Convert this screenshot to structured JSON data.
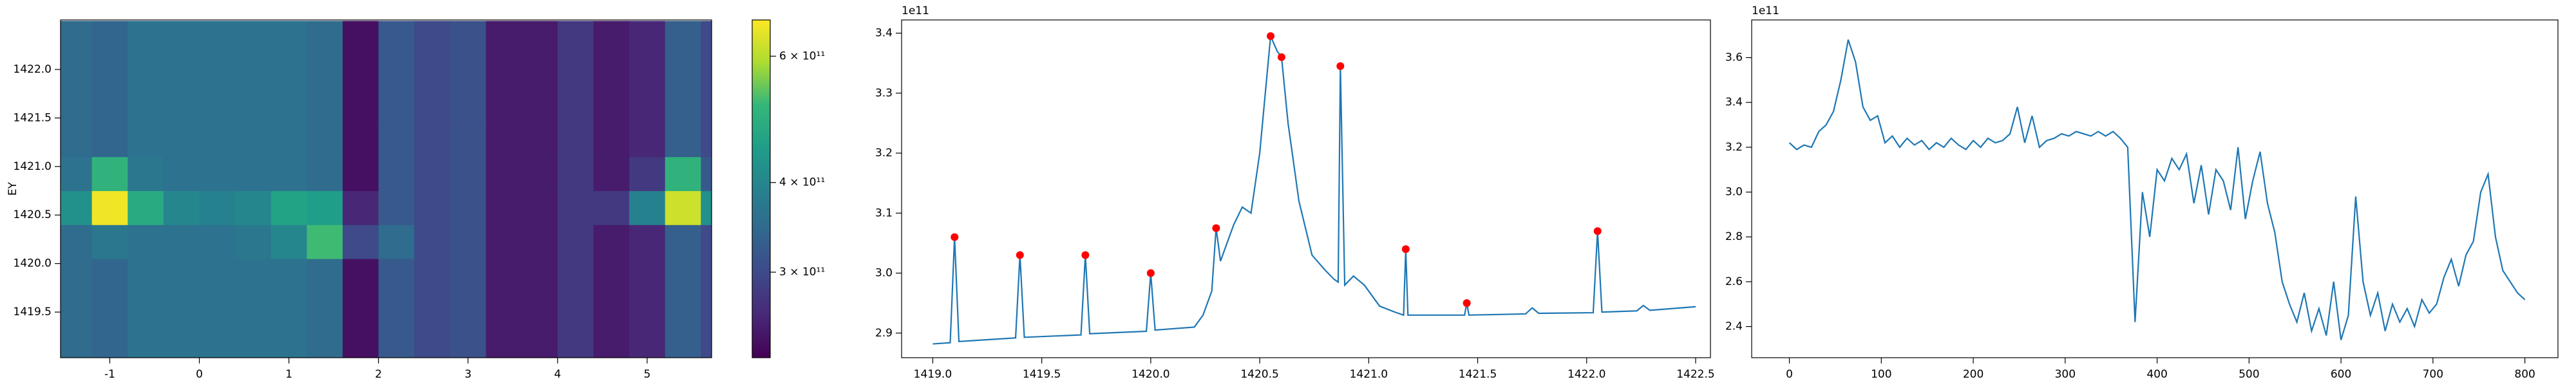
{
  "chart_data": [
    {
      "type": "heatmap",
      "ylabel": "EY",
      "x": [
        -1.4,
        -1.0,
        -0.6,
        -0.2,
        0.2,
        0.6,
        1.0,
        1.4,
        1.8,
        2.2,
        2.6,
        3.0,
        3.4,
        3.8,
        4.2,
        4.6,
        5.0,
        5.4,
        5.8
      ],
      "y": [
        1419.175,
        1419.525,
        1419.875,
        1420.225,
        1420.575,
        1420.925,
        1421.275,
        1421.625,
        1421.975,
        1422.325
      ],
      "z": [
        [
          350000000000.0,
          340000000000.0,
          360000000000.0,
          360000000000.0,
          360000000000.0,
          360000000000.0,
          360000000000.0,
          350000000000.0,
          240000000000.0,
          320000000000.0,
          300000000000.0,
          310000000000.0,
          250000000000.0,
          250000000000.0,
          280000000000.0,
          250000000000.0,
          260000000000.0,
          330000000000.0,
          300000000000.0
        ],
        [
          350000000000.0,
          340000000000.0,
          360000000000.0,
          360000000000.0,
          360000000000.0,
          360000000000.0,
          360000000000.0,
          350000000000.0,
          240000000000.0,
          320000000000.0,
          300000000000.0,
          310000000000.0,
          250000000000.0,
          250000000000.0,
          280000000000.0,
          250000000000.0,
          260000000000.0,
          330000000000.0,
          300000000000.0
        ],
        [
          350000000000.0,
          340000000000.0,
          360000000000.0,
          360000000000.0,
          360000000000.0,
          360000000000.0,
          360000000000.0,
          350000000000.0,
          240000000000.0,
          320000000000.0,
          300000000000.0,
          310000000000.0,
          250000000000.0,
          250000000000.0,
          280000000000.0,
          250000000000.0,
          260000000000.0,
          330000000000.0,
          300000000000.0
        ],
        [
          350000000000.0,
          370000000000.0,
          360000000000.0,
          360000000000.0,
          360000000000.0,
          370000000000.0,
          400000000000.0,
          520000000000.0,
          300000000000.0,
          350000000000.0,
          300000000000.0,
          310000000000.0,
          250000000000.0,
          250000000000.0,
          280000000000.0,
          250000000000.0,
          260000000000.0,
          330000000000.0,
          300000000000.0
        ],
        [
          420000000000.0,
          660000000000.0,
          480000000000.0,
          400000000000.0,
          390000000000.0,
          400000000000.0,
          460000000000.0,
          450000000000.0,
          260000000000.0,
          320000000000.0,
          300000000000.0,
          310000000000.0,
          250000000000.0,
          250000000000.0,
          280000000000.0,
          280000000000.0,
          390000000000.0,
          620000000000.0,
          420000000000.0
        ],
        [
          360000000000.0,
          500000000000.0,
          370000000000.0,
          360000000000.0,
          360000000000.0,
          360000000000.0,
          360000000000.0,
          350000000000.0,
          240000000000.0,
          320000000000.0,
          300000000000.0,
          310000000000.0,
          250000000000.0,
          250000000000.0,
          280000000000.0,
          250000000000.0,
          280000000000.0,
          500000000000.0,
          320000000000.0
        ],
        [
          350000000000.0,
          340000000000.0,
          360000000000.0,
          360000000000.0,
          360000000000.0,
          360000000000.0,
          360000000000.0,
          350000000000.0,
          240000000000.0,
          320000000000.0,
          300000000000.0,
          310000000000.0,
          250000000000.0,
          250000000000.0,
          280000000000.0,
          250000000000.0,
          260000000000.0,
          330000000000.0,
          300000000000.0
        ],
        [
          350000000000.0,
          340000000000.0,
          360000000000.0,
          360000000000.0,
          360000000000.0,
          360000000000.0,
          360000000000.0,
          350000000000.0,
          240000000000.0,
          320000000000.0,
          300000000000.0,
          310000000000.0,
          250000000000.0,
          250000000000.0,
          280000000000.0,
          250000000000.0,
          260000000000.0,
          330000000000.0,
          300000000000.0
        ],
        [
          350000000000.0,
          340000000000.0,
          360000000000.0,
          360000000000.0,
          360000000000.0,
          360000000000.0,
          360000000000.0,
          350000000000.0,
          240000000000.0,
          320000000000.0,
          300000000000.0,
          310000000000.0,
          250000000000.0,
          250000000000.0,
          280000000000.0,
          250000000000.0,
          260000000000.0,
          330000000000.0,
          300000000000.0
        ],
        [
          350000000000.0,
          340000000000.0,
          360000000000.0,
          360000000000.0,
          360000000000.0,
          360000000000.0,
          360000000000.0,
          350000000000.0,
          240000000000.0,
          320000000000.0,
          300000000000.0,
          310000000000.0,
          250000000000.0,
          250000000000.0,
          280000000000.0,
          250000000000.0,
          260000000000.0,
          330000000000.0,
          300000000000.0
        ]
      ],
      "xlim": [
        -1.55,
        5.72
      ],
      "ylim": [
        1419.03,
        1422.51
      ],
      "xticks": [
        -1,
        0,
        1,
        2,
        3,
        4,
        5
      ],
      "yticks": [
        1419.5,
        {
          "value": 1420.0,
          "label": "1420.0"
        },
        1420.5,
        {
          "value": 1421.0,
          "label": "1421.0"
        },
        1421.5,
        {
          "value": 1422.0,
          "label": "1422.0"
        }
      ],
      "colormap": "viridis",
      "color_scale": "log",
      "clim": [
        228000000000.0,
        674000000000.0
      ],
      "cticks": [
        {
          "value": 300000000000.0,
          "label": "3 × 10¹¹"
        },
        {
          "value": 400000000000.0,
          "label": "4 × 10¹¹"
        },
        {
          "value": 600000000000.0,
          "label": "6 × 10¹¹"
        }
      ]
    },
    {
      "type": "line",
      "offset_label": "1e11",
      "color": "#1f77b4",
      "x": [
        1419.0,
        1419.08,
        1419.1,
        1419.12,
        1419.38,
        1419.4,
        1419.42,
        1419.68,
        1419.7,
        1419.72,
        1419.98,
        1420.0,
        1420.02,
        1420.2,
        1420.24,
        1420.28,
        1420.3,
        1420.32,
        1420.38,
        1420.42,
        1420.46,
        1420.5,
        1420.55,
        1420.58,
        1420.6,
        1420.63,
        1420.68,
        1420.74,
        1420.8,
        1420.84,
        1420.86,
        1420.87,
        1420.89,
        1420.93,
        1420.98,
        1421.05,
        1421.12,
        1421.16,
        1421.17,
        1421.18,
        1421.44,
        1421.45,
        1421.46,
        1421.72,
        1421.75,
        1421.78,
        1422.03,
        1422.05,
        1422.07,
        1422.23,
        1422.26,
        1422.29,
        1422.5
      ],
      "values": [
        2.882,
        2.884,
        3.06,
        2.886,
        2.892,
        3.03,
        2.893,
        2.897,
        3.03,
        2.899,
        2.903,
        3.0,
        2.905,
        2.91,
        2.93,
        2.97,
        3.075,
        3.02,
        3.08,
        3.11,
        3.1,
        3.2,
        3.395,
        3.37,
        3.36,
        3.25,
        3.12,
        3.03,
        3.005,
        2.99,
        2.985,
        3.345,
        2.98,
        2.995,
        2.98,
        2.945,
        2.935,
        2.93,
        3.04,
        2.93,
        2.93,
        2.95,
        2.93,
        2.932,
        2.942,
        2.933,
        2.934,
        3.07,
        2.935,
        2.937,
        2.946,
        2.938,
        2.944
      ],
      "markers": {
        "color": "#ff0000",
        "x": [
          1419.1,
          1419.4,
          1419.7,
          1420.0,
          1420.3,
          1420.55,
          1420.6,
          1420.87,
          1421.17,
          1421.45,
          1422.05
        ],
        "values": [
          3.06,
          3.03,
          3.03,
          3.0,
          3.075,
          3.395,
          3.36,
          3.345,
          3.04,
          2.95,
          3.07
        ]
      },
      "xlim": [
        1418.857,
        1422.568
      ],
      "ylim": [
        2.859,
        3.422
      ],
      "xticks": [
        {
          "value": 1419.0,
          "label": "1419.0"
        },
        1419.5,
        {
          "value": 1420.0,
          "label": "1420.0"
        },
        1420.5,
        {
          "value": 1421.0,
          "label": "1421.0"
        },
        1421.5,
        {
          "value": 1422.0,
          "label": "1422.0"
        },
        1422.5
      ],
      "yticks": [
        2.9,
        {
          "value": 3.0,
          "label": "3.0"
        },
        3.1,
        3.2,
        3.3,
        3.4
      ]
    },
    {
      "type": "line",
      "offset_label": "1e11",
      "color": "#1f77b4",
      "x": [
        0,
        8,
        16,
        24,
        32,
        40,
        48,
        56,
        64,
        72,
        80,
        88,
        96,
        104,
        112,
        120,
        128,
        136,
        144,
        152,
        160,
        168,
        176,
        184,
        192,
        200,
        208,
        216,
        224,
        232,
        240,
        248,
        256,
        264,
        272,
        280,
        288,
        296,
        304,
        312,
        320,
        328,
        336,
        344,
        352,
        360,
        368,
        376,
        384,
        392,
        400,
        408,
        416,
        424,
        432,
        440,
        448,
        456,
        464,
        472,
        480,
        488,
        496,
        504,
        512,
        520,
        528,
        536,
        544,
        552,
        560,
        568,
        576,
        584,
        592,
        600,
        608,
        616,
        624,
        632,
        640,
        648,
        656,
        664,
        672,
        680,
        688,
        696,
        704,
        712,
        720,
        728,
        736,
        744,
        752,
        760,
        768,
        776,
        784,
        792,
        800
      ],
      "values": [
        3.22,
        3.19,
        3.21,
        3.2,
        3.27,
        3.3,
        3.36,
        3.5,
        3.68,
        3.58,
        3.38,
        3.32,
        3.34,
        3.22,
        3.25,
        3.2,
        3.24,
        3.21,
        3.23,
        3.19,
        3.22,
        3.2,
        3.24,
        3.21,
        3.19,
        3.23,
        3.2,
        3.24,
        3.22,
        3.23,
        3.26,
        3.38,
        3.22,
        3.34,
        3.2,
        3.23,
        3.24,
        3.26,
        3.25,
        3.27,
        3.26,
        3.25,
        3.27,
        3.25,
        3.27,
        3.24,
        3.2,
        2.42,
        3.0,
        2.8,
        3.1,
        3.05,
        3.15,
        3.1,
        3.17,
        2.95,
        3.12,
        2.9,
        3.1,
        3.05,
        2.92,
        3.2,
        2.88,
        3.05,
        3.18,
        2.95,
        2.82,
        2.6,
        2.5,
        2.42,
        2.55,
        2.38,
        2.48,
        2.36,
        2.6,
        2.34,
        2.45,
        2.98,
        2.6,
        2.45,
        2.55,
        2.38,
        2.5,
        2.42,
        2.48,
        2.4,
        2.52,
        2.46,
        2.5,
        2.62,
        2.7,
        2.58,
        2.72,
        2.78,
        3.0,
        3.08,
        2.8,
        2.65,
        2.6,
        2.55,
        2.52
      ],
      "xlim": [
        -41,
        836
      ],
      "ylim": [
        2.261,
        3.768
      ],
      "xticks": [
        0,
        100,
        200,
        300,
        400,
        500,
        600,
        700,
        800
      ],
      "yticks": [
        2.4,
        2.6,
        2.8,
        {
          "value": 3.0,
          "label": "3.0"
        },
        3.2,
        3.4,
        3.6
      ]
    }
  ]
}
